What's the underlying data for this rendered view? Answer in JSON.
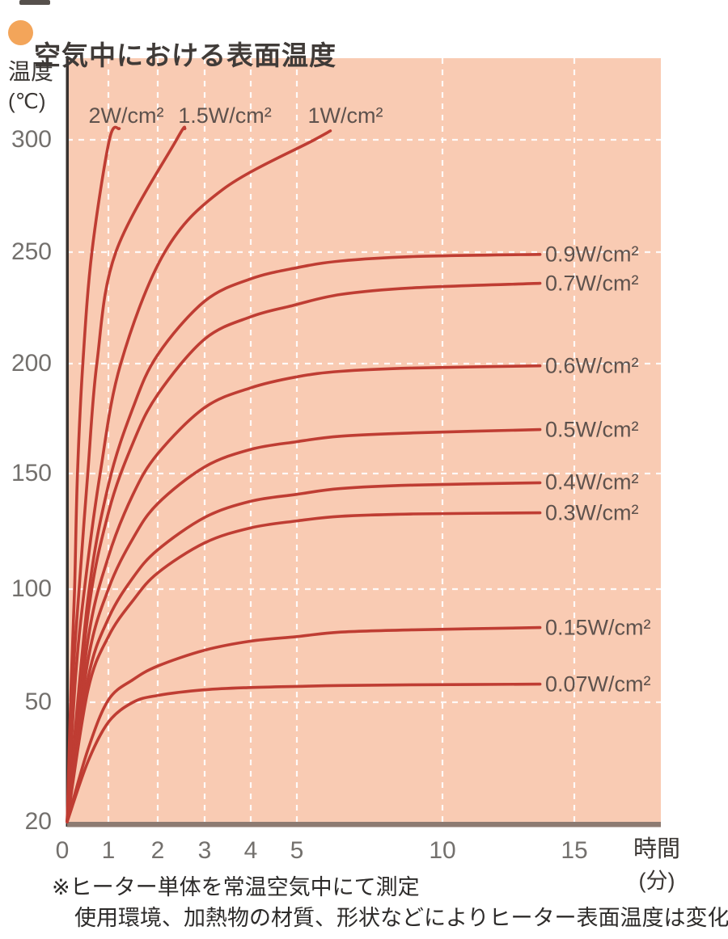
{
  "header": {
    "title": "空気中における表面温度",
    "bullet_color": "#f3a55a"
  },
  "chart_data": {
    "type": "line",
    "title": "空気中における表面温度",
    "x_axis": {
      "label": "時間",
      "unit": "(分)",
      "ticks": [
        "0",
        "1",
        "2",
        "3",
        "4",
        "5",
        "10",
        "15"
      ],
      "tick_values": [
        0,
        1,
        2,
        3,
        4,
        5,
        10,
        15
      ],
      "scale_note": "non-linear time axis: 0-5 min expanded, 5-15 min compressed"
    },
    "y_axis": {
      "label": "温度",
      "unit": "(℃)",
      "ticks": [
        "300",
        "250",
        "200",
        "150",
        "100",
        "50",
        "20"
      ],
      "tick_values": [
        300,
        250,
        200,
        150,
        100,
        50,
        20
      ],
      "range": [
        20,
        305
      ]
    },
    "grid": {
      "style": "white dashed",
      "horizontal_values": [
        300,
        250,
        200,
        150,
        100,
        50
      ],
      "vertical_values": [
        1,
        2,
        3,
        4,
        5,
        10,
        15
      ]
    },
    "colors": {
      "plot_background": "#f9cbb3",
      "curve": "#bf3d33",
      "grid": "#ffffff",
      "x_axis_bar": "#8d7b72",
      "y_axis_line": "#38322f"
    },
    "series": [
      {
        "label": "2W/cm²",
        "label_position": "top",
        "plateau_c": null,
        "points_min_c": [
          [
            0,
            20
          ],
          [
            0.1,
            60
          ],
          [
            0.18,
            100
          ],
          [
            0.25,
            150
          ],
          [
            0.38,
            200
          ],
          [
            0.6,
            250
          ],
          [
            1.02,
            300
          ],
          [
            1.22,
            305
          ]
        ]
      },
      {
        "label": "1.5W/cm²",
        "label_position": "top",
        "plateau_c": null,
        "points_min_c": [
          [
            0,
            20
          ],
          [
            0.14,
            60
          ],
          [
            0.29,
            100
          ],
          [
            0.5,
            150
          ],
          [
            0.72,
            200
          ],
          [
            1.15,
            250
          ],
          [
            2.4,
            300
          ],
          [
            2.58,
            305
          ]
        ]
      },
      {
        "label": "1W/cm²",
        "label_position": "top",
        "plateau_c": null,
        "points_min_c": [
          [
            0,
            20
          ],
          [
            0.2,
            60
          ],
          [
            0.42,
            100
          ],
          [
            0.8,
            150
          ],
          [
            1.25,
            200
          ],
          [
            2.15,
            250
          ],
          [
            3.4,
            278
          ],
          [
            5.6,
            300
          ],
          [
            6.15,
            304
          ]
        ]
      },
      {
        "label": "0.9W/cm²",
        "label_position": "right",
        "plateau_c": 249,
        "points_min_c": [
          [
            0,
            20
          ],
          [
            0.5,
            95
          ],
          [
            1,
            145
          ],
          [
            1.5,
            180
          ],
          [
            2,
            204
          ],
          [
            3,
            228
          ],
          [
            4,
            238
          ],
          [
            5,
            243
          ],
          [
            6.5,
            246
          ],
          [
            9,
            248
          ],
          [
            13.7,
            249
          ]
        ]
      },
      {
        "label": "0.7W/cm²",
        "label_position": "right",
        "plateau_c": 236,
        "points_min_c": [
          [
            0,
            20
          ],
          [
            0.5,
            88
          ],
          [
            1,
            133
          ],
          [
            1.5,
            164
          ],
          [
            2,
            186
          ],
          [
            3,
            211
          ],
          [
            4,
            221
          ],
          [
            4.9,
            226
          ],
          [
            6.5,
            231
          ],
          [
            9,
            234
          ],
          [
            13.7,
            236
          ]
        ]
      },
      {
        "label": "0.6W/cm²",
        "label_position": "right",
        "plateau_c": 199,
        "points_min_c": [
          [
            0,
            20
          ],
          [
            0.5,
            77
          ],
          [
            1,
            114
          ],
          [
            1.5,
            141
          ],
          [
            2,
            159
          ],
          [
            3,
            180
          ],
          [
            4,
            189
          ],
          [
            5,
            194
          ],
          [
            6.5,
            196.5
          ],
          [
            9,
            198
          ],
          [
            13.7,
            199
          ]
        ]
      },
      {
        "label": "0.5W/cm²",
        "label_position": "right",
        "plateau_c": 170,
        "points_min_c": [
          [
            0,
            20
          ],
          [
            0.5,
            68
          ],
          [
            1,
            100
          ],
          [
            1.5,
            122
          ],
          [
            2,
            137
          ],
          [
            3,
            153
          ],
          [
            4,
            161
          ],
          [
            5,
            164.5
          ],
          [
            6.5,
            167
          ],
          [
            9,
            168.5
          ],
          [
            13.7,
            170
          ]
        ]
      },
      {
        "label": "0.4W/cm²",
        "label_position": "right",
        "plateau_c": 146,
        "points_min_c": [
          [
            0,
            20
          ],
          [
            0.5,
            60
          ],
          [
            1,
            87
          ],
          [
            1.5,
            105
          ],
          [
            2,
            117
          ],
          [
            3,
            131
          ],
          [
            4,
            138
          ],
          [
            5,
            141
          ],
          [
            6.5,
            143.5
          ],
          [
            9,
            145
          ],
          [
            13.7,
            146
          ]
        ]
      },
      {
        "label": "0.3W/cm²",
        "label_position": "right",
        "plateau_c": 133,
        "points_min_c": [
          [
            0,
            20
          ],
          [
            0.5,
            55
          ],
          [
            1,
            79
          ],
          [
            1.5,
            95
          ],
          [
            2,
            107
          ],
          [
            3,
            120
          ],
          [
            4,
            126.5
          ],
          [
            5,
            129.5
          ],
          [
            6.5,
            131.5
          ],
          [
            9,
            132.5
          ],
          [
            13.7,
            133
          ]
        ]
      },
      {
        "label": "0.15W/cm²",
        "label_position": "right",
        "plateau_c": 83,
        "points_min_c": [
          [
            0,
            20
          ],
          [
            0.5,
            38
          ],
          [
            1,
            51
          ],
          [
            1.5,
            60
          ],
          [
            2,
            66
          ],
          [
            3,
            73
          ],
          [
            4,
            77
          ],
          [
            5,
            79
          ],
          [
            6.5,
            81
          ],
          [
            9,
            82
          ],
          [
            13.7,
            83
          ]
        ]
      },
      {
        "label": "0.07W/cm²",
        "label_position": "right",
        "plateau_c": 58,
        "points_min_c": [
          [
            0,
            20
          ],
          [
            0.5,
            35
          ],
          [
            1,
            45
          ],
          [
            1.5,
            50
          ],
          [
            2,
            53
          ],
          [
            3,
            55.5
          ],
          [
            4,
            56.5
          ],
          [
            5,
            57
          ],
          [
            6.5,
            57.4
          ],
          [
            9,
            57.7
          ],
          [
            13.7,
            58
          ]
        ]
      }
    ]
  },
  "footnotes": {
    "line1": "※ヒーター単体を常温空気中にて測定",
    "line2": "使用環境、加熱物の材質、形状などによりヒーター表面温度は変化します。"
  }
}
